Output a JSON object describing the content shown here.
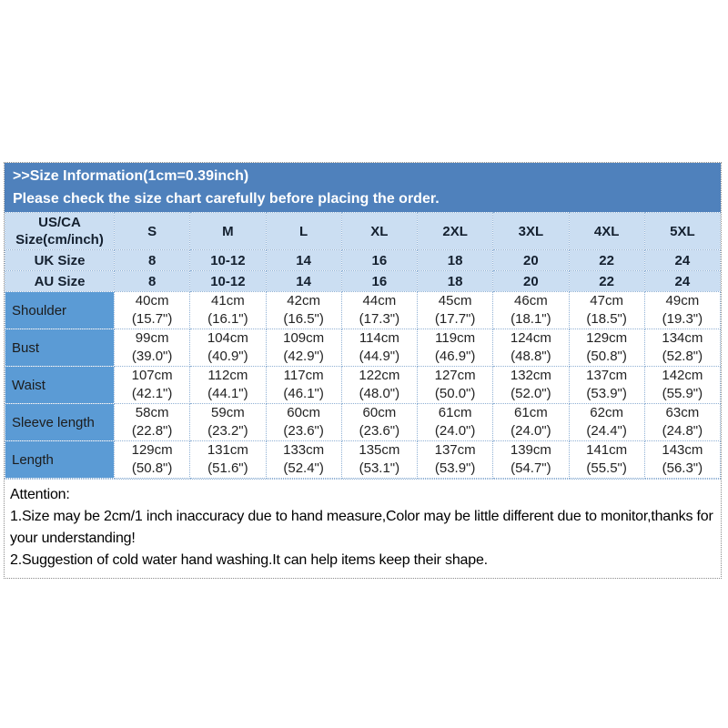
{
  "banner": {
    "line1": ">>Size Information(1cm=0.39inch)",
    "line2": "Please check the size chart carefully before placing the order."
  },
  "size_table": {
    "corner": [
      "US/CA",
      "Size(cm/inch)"
    ],
    "sizes": [
      "S",
      "M",
      "L",
      "XL",
      "2XL",
      "3XL",
      "4XL",
      "5XL"
    ],
    "uk": {
      "label": "UK Size",
      "values": [
        "8",
        "10-12",
        "14",
        "16",
        "18",
        "20",
        "22",
        "24"
      ]
    },
    "au": {
      "label": "AU Size",
      "values": [
        "8",
        "10-12",
        "14",
        "16",
        "18",
        "20",
        "22",
        "24"
      ]
    },
    "measurements": [
      {
        "label": "Shoulder",
        "cm": [
          "40cm",
          "41cm",
          "42cm",
          "44cm",
          "45cm",
          "46cm",
          "47cm",
          "49cm"
        ],
        "inch": [
          "(15.7\")",
          "(16.1\")",
          "(16.5\")",
          "(17.3\")",
          "(17.7\")",
          "(18.1\")",
          "(18.5\")",
          "(19.3\")"
        ]
      },
      {
        "label": "Bust",
        "cm": [
          "99cm",
          "104cm",
          "109cm",
          "114cm",
          "119cm",
          "124cm",
          "129cm",
          "134cm"
        ],
        "inch": [
          "(39.0\")",
          "(40.9\")",
          "(42.9\")",
          "(44.9\")",
          "(46.9\")",
          "(48.8\")",
          "(50.8\")",
          "(52.8\")"
        ]
      },
      {
        "label": "Waist",
        "cm": [
          "107cm",
          "112cm",
          "117cm",
          "122cm",
          "127cm",
          "132cm",
          "137cm",
          "142cm"
        ],
        "inch": [
          "(42.1\")",
          "(44.1\")",
          "(46.1\")",
          "(48.0\")",
          "(50.0\")",
          "(52.0\")",
          "(53.9\")",
          "(55.9\")"
        ]
      },
      {
        "label": "Sleeve length",
        "cm": [
          "58cm",
          "59cm",
          "60cm",
          "60cm",
          "61cm",
          "61cm",
          "62cm",
          "63cm"
        ],
        "inch": [
          "(22.8\")",
          "(23.2\")",
          "(23.6\")",
          "(23.6\")",
          "(24.0\")",
          "(24.0\")",
          "(24.4\")",
          "(24.8\")"
        ]
      },
      {
        "label": "Length",
        "cm": [
          "129cm",
          "131cm",
          "133cm",
          "135cm",
          "137cm",
          "139cm",
          "141cm",
          "143cm"
        ],
        "inch": [
          "(50.8\")",
          "(51.6\")",
          "(52.4\")",
          "(53.1\")",
          "(53.9\")",
          "(54.7\")",
          "(55.5\")",
          "(56.3\")"
        ]
      }
    ]
  },
  "attention": {
    "title": "Attention:",
    "lines": [
      "1.Size may be 2cm/1 inch inaccuracy due to hand measure,Color may be little different due to monitor,thanks for your understanding!",
      "2.Suggestion of cold water hand washing.It can help items keep their shape."
    ]
  },
  "colors": {
    "accent": "#4f81bc",
    "light_row": "#cbdef2",
    "label_column": "#5b9bd5"
  }
}
